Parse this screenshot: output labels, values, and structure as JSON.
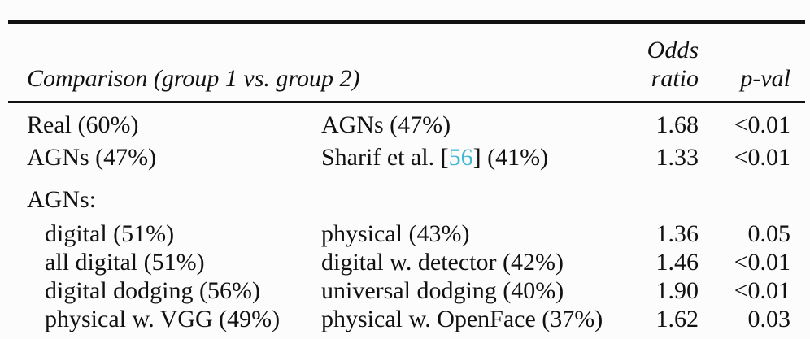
{
  "colors": {
    "citation": "#3fb8d5",
    "text": "#111111",
    "rule": "#111111",
    "background": "#fcfcfc"
  },
  "table": {
    "header": {
      "comparison_label": "Comparison (group 1 vs. group 2)",
      "odds_line1": "Odds",
      "odds_line2": "ratio",
      "pval_label": "p-val"
    },
    "rows": [
      {
        "g1": "Real (60%)",
        "g2": "AGNs (47%)",
        "odds": "1.68",
        "pval": "<0.01"
      },
      {
        "g1": "AGNs (47%)",
        "g2_prefix": "Sharif et al. [",
        "g2_cite": "56",
        "g2_suffix": "] (41%)",
        "odds": "1.33",
        "pval": "<0.01"
      }
    ],
    "section_label": "AGNs:",
    "sub_rows": [
      {
        "g1": "digital (51%)",
        "g2": "physical (43%)",
        "odds": "1.36",
        "pval": "0.05"
      },
      {
        "g1": "all digital (51%)",
        "g2": "digital w. detector (42%)",
        "odds": "1.46",
        "pval": "<0.01"
      },
      {
        "g1": "digital dodging (56%)",
        "g2": "universal dodging (40%)",
        "odds": "1.90",
        "pval": "<0.01"
      },
      {
        "g1": "physical w. VGG (49%)",
        "g2": "physical w. OpenFace (37%)",
        "odds": "1.62",
        "pval": "0.03"
      }
    ]
  }
}
